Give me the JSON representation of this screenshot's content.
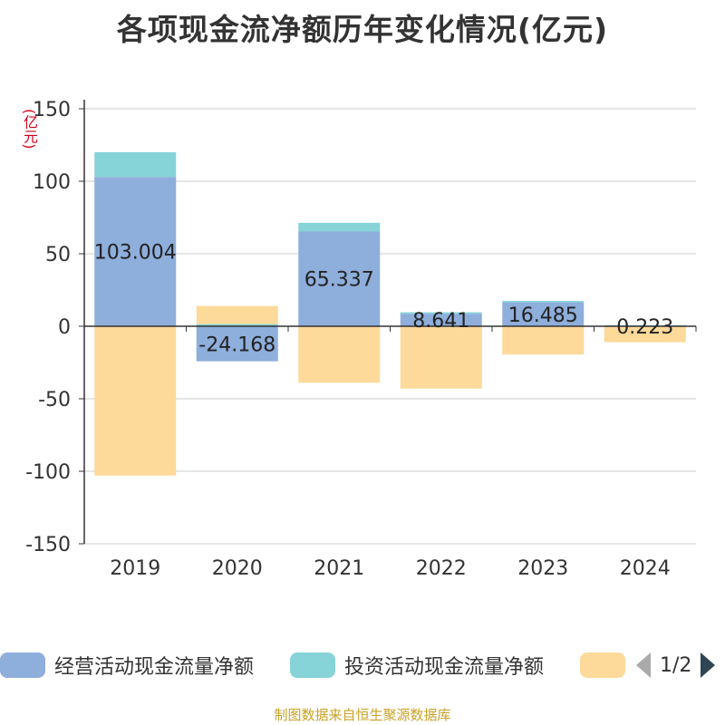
{
  "title": "各项现金流净额历年变化情况(亿元)",
  "unit_label": "(亿元)",
  "source": "制图数据来自恒生聚源数据库",
  "legend": {
    "items": [
      {
        "label": "经营活动现金流量净额",
        "color": "#8eaedb"
      },
      {
        "label": "投资活动现金流量净额",
        "color": "#86d3d8"
      },
      {
        "label": "",
        "color": "#fdd99a"
      }
    ],
    "page_text": "1/2"
  },
  "chart_data": {
    "type": "bar",
    "stacked": true,
    "categories": [
      "2019",
      "2020",
      "2021",
      "2022",
      "2023",
      "2024"
    ],
    "ylim": [
      -150,
      150
    ],
    "yticks": [
      150,
      100,
      50,
      0,
      -50,
      -100,
      -150
    ],
    "grid": true,
    "series": [
      {
        "name": "经营活动现金流量净额",
        "color": "#8eaedb",
        "values": [
          103.004,
          -24.168,
          65.337,
          8.641,
          16.485,
          0.223
        ],
        "labels": [
          "103.004",
          "-24.168",
          "65.337",
          "8.641",
          "16.485",
          "0.223"
        ]
      },
      {
        "name": "投资活动现金流量净额",
        "color": "#86d3d8",
        "values": [
          17,
          1.5,
          6,
          1,
          1,
          0.5
        ]
      },
      {
        "name": "",
        "color": "#fdd99a",
        "values": [
          -103,
          12.5,
          -39,
          -43,
          -19.5,
          -11
        ]
      }
    ]
  }
}
